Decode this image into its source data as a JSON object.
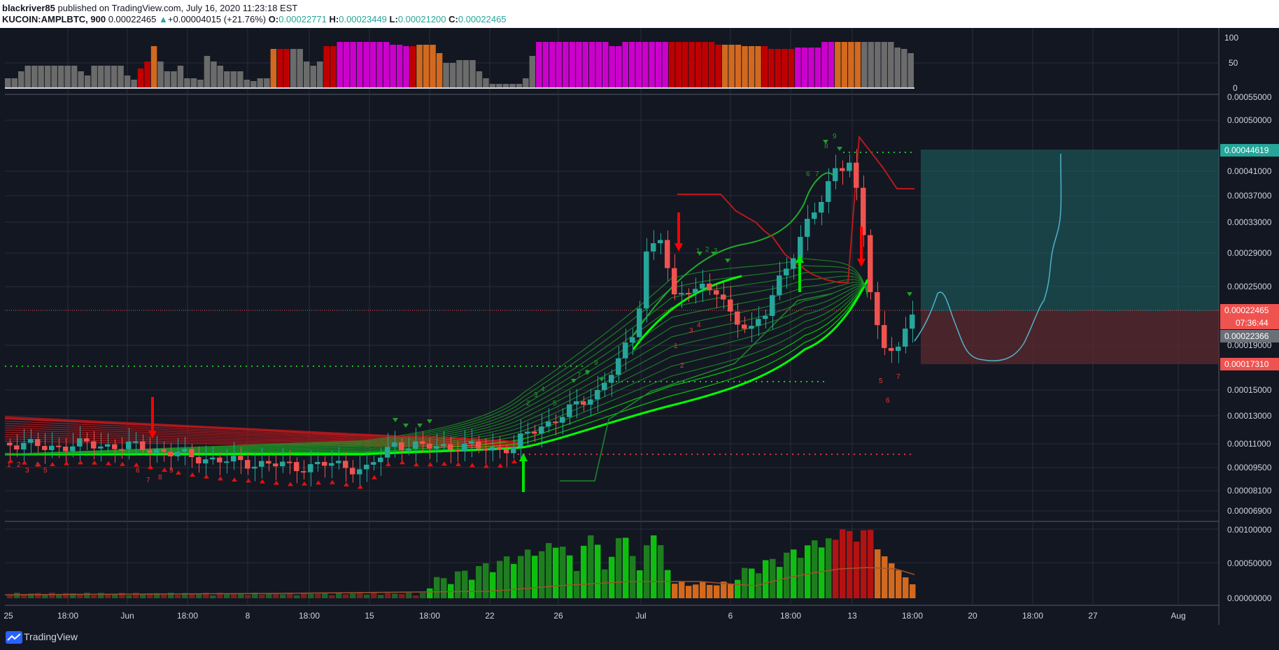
{
  "header": {
    "author": "blackriver85",
    "published_text": " published on TradingView.com, July 16, 2020 11:23:18 EST",
    "symbol": "KUCOIN:AMPLBTC, 900",
    "last_price": "0.00022465",
    "change_arrow": "▲",
    "change": "+0.00004015 (+21.76%)",
    "o_label": "O:",
    "o_value": "0.00022771",
    "h_label": "H:",
    "h_value": "0.00023449",
    "l_label": "L:",
    "l_value": "0.00021200",
    "c_label": "C:",
    "c_value": "0.00022465"
  },
  "top_scale": [
    "100",
    "50",
    "0"
  ],
  "price_scale": [
    "0.00055000",
    "0.00050000",
    "0.00041000",
    "0.00037000",
    "0.00033000",
    "0.00029000",
    "0.00025000",
    "0.00019000",
    "0.00015000",
    "0.00013000",
    "0.00011000",
    "0.00009500",
    "0.00008100",
    "0.00006900"
  ],
  "price_tags": {
    "target": "0.00044619",
    "last": "0.00022465",
    "countdown": "07:36:44",
    "entry": "0.00022366",
    "stop": "0.00017310"
  },
  "volume_scale": [
    "0.00100000",
    "0.00050000",
    "0.00000000"
  ],
  "time_axis": [
    "25",
    "18:00",
    "Jun",
    "18:00",
    "8",
    "18:00",
    "15",
    "18:00",
    "22",
    "26",
    "Jul",
    "6",
    "18:00",
    "13",
    "18:00",
    "20",
    "18:00",
    "27",
    "Aug"
  ],
  "seq_labels": [
    {
      "t": "2",
      "c": "g"
    },
    {
      "t": "3",
      "c": "g"
    },
    {
      "t": "4",
      "c": "g"
    },
    {
      "t": "5",
      "c": "g"
    },
    {
      "t": "7",
      "c": "g"
    },
    {
      "t": "8",
      "c": "g"
    },
    {
      "t": "9",
      "c": "g"
    },
    {
      "t": "1",
      "c": "g"
    },
    {
      "t": "2",
      "c": "g"
    },
    {
      "t": "3",
      "c": "g"
    },
    {
      "t": "6",
      "c": "g"
    },
    {
      "t": "7",
      "c": "g"
    },
    {
      "t": "9",
      "c": "g"
    },
    {
      "t": "8",
      "c": "g"
    },
    {
      "t": "1",
      "c": "r"
    },
    {
      "t": "2",
      "c": "r"
    },
    {
      "t": "3",
      "c": "r"
    },
    {
      "t": "4",
      "c": "r"
    },
    {
      "t": "5",
      "c": "r"
    },
    {
      "t": "6",
      "c": "r"
    },
    {
      "t": "7",
      "c": "r"
    },
    {
      "t": "1",
      "c": "r"
    },
    {
      "t": "2",
      "c": "r"
    },
    {
      "t": "3",
      "c": "r"
    },
    {
      "t": "4",
      "c": "r"
    },
    {
      "t": "5",
      "c": "r"
    },
    {
      "t": "6",
      "c": "r"
    },
    {
      "t": "7",
      "c": "r"
    },
    {
      "t": "8",
      "c": "r"
    },
    {
      "t": "9",
      "c": "r"
    }
  ],
  "colors": {
    "background": "#131722",
    "up": "#26a69a",
    "down": "#ef5350",
    "ribbon": "#00e600",
    "target_zone": "#1e5f60",
    "stop_zone": "#5e2a2f",
    "projection": "#4fb3c6"
  },
  "footer": {
    "brand": "TradingView"
  }
}
